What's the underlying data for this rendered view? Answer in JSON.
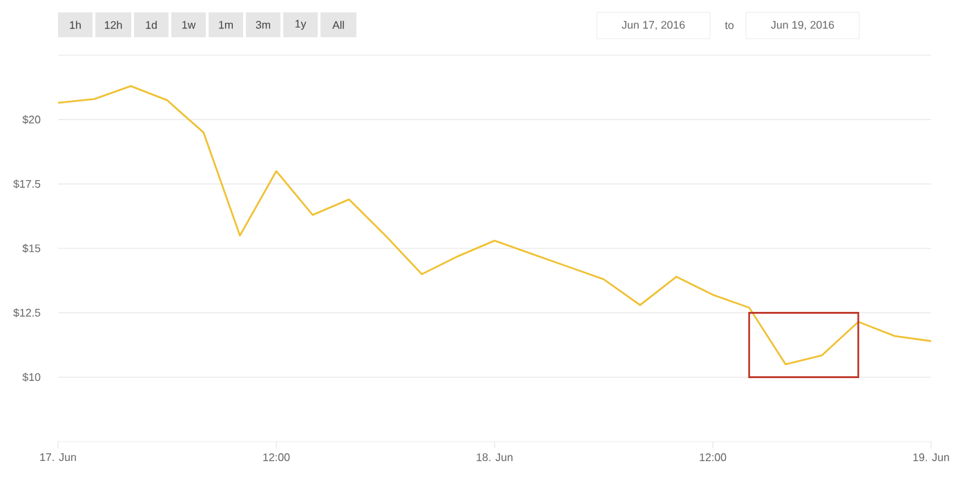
{
  "chart_data": {
    "type": "line",
    "x": [
      "2016-06-17T00:00",
      "2016-06-17T02:00",
      "2016-06-17T04:00",
      "2016-06-17T06:00",
      "2016-06-17T08:00",
      "2016-06-17T10:00",
      "2016-06-17T12:00",
      "2016-06-17T14:00",
      "2016-06-17T16:00",
      "2016-06-17T18:00",
      "2016-06-17T20:00",
      "2016-06-17T22:00",
      "2016-06-18T00:00",
      "2016-06-18T02:00",
      "2016-06-18T04:00",
      "2016-06-18T06:00",
      "2016-06-18T08:00",
      "2016-06-18T10:00",
      "2016-06-18T12:00",
      "2016-06-18T14:00",
      "2016-06-18T16:00",
      "2016-06-18T18:00",
      "2016-06-18T20:00",
      "2016-06-18T22:00",
      "2016-06-19T00:00"
    ],
    "series": [
      {
        "color": "#f0c030",
        "values": [
          20.65,
          20.8,
          21.3,
          20.75,
          19.5,
          15.5,
          18.0,
          16.3,
          16.9,
          15.5,
          14.0,
          14.7,
          15.3,
          14.8,
          14.3,
          13.8,
          12.8,
          13.9,
          13.2,
          12.7,
          10.5,
          10.85,
          12.15,
          11.6,
          11.4
        ]
      }
    ],
    "xlim": [
      "2016-06-17T00:00",
      "2016-06-19T00:00"
    ],
    "xticks": [
      {
        "value": "2016-06-17T00:00",
        "label": "17. Jun"
      },
      {
        "value": "2016-06-17T12:00",
        "label": "12:00"
      },
      {
        "value": "2016-06-18T00:00",
        "label": "18. Jun"
      },
      {
        "value": "2016-06-18T12:00",
        "label": "12:00"
      },
      {
        "value": "2016-06-19T00:00",
        "label": "19. Jun"
      }
    ],
    "ylim": [
      7.5,
      22.5
    ],
    "yticks": [
      {
        "value": 10,
        "label": "$10"
      },
      {
        "value": 12.5,
        "label": "$12.5"
      },
      {
        "value": 15,
        "label": "$15"
      },
      {
        "value": 17.5,
        "label": "$17.5"
      },
      {
        "value": 20,
        "label": "$20"
      },
      {
        "value": 22.5,
        "label": null
      }
    ],
    "grid": "y",
    "marker": "none",
    "line_style": "solid",
    "annotations": [
      "1h",
      "12h",
      "1d",
      "1w",
      "1m",
      "3m",
      "1y",
      "All",
      "Jun 17, 2016",
      "to",
      "Jun 19, 2016"
    ]
  }
}
